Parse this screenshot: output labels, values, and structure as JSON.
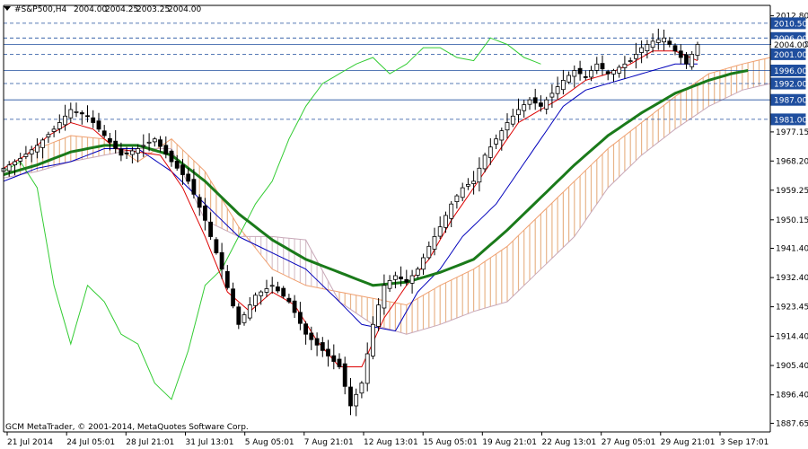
{
  "chart_data": {
    "type": "candlestick",
    "title": "#S&P500,H4",
    "ohlc_header": [
      "2004.00",
      "2004.25",
      "2003.25",
      "2004.00"
    ],
    "copyright": "GCM MetaTrader, © 2001-2014, MetaQuotes Software Corp.",
    "ylim": [
      1885.0,
      2016.0
    ],
    "y_ticks": [
      "2012.80",
      "2004.00",
      "1977.15",
      "1968.20",
      "1959.25",
      "1950.15",
      "1941.40",
      "1932.40",
      "1923.45",
      "1914.40",
      "1905.40",
      "1896.40",
      "1887.65"
    ],
    "x_ticks": [
      "21 Jul 2014",
      "24 Jul 05:01",
      "28 Jul 21:01",
      "31 Jul 13:01",
      "5 Aug 05:01",
      "7 Aug 21:01",
      "12 Aug 13:01",
      "15 Aug 05:01",
      "19 Aug 21:01",
      "22 Aug 13:01",
      "27 Aug 05:01",
      "29 Aug 21:01",
      "3 Sep 17:01"
    ],
    "level_lines": [
      {
        "label": "2010.50",
        "value": 2010.5,
        "style": "dashed",
        "highlight": true
      },
      {
        "label": "2006.00",
        "value": 2006.0,
        "style": "dashed",
        "highlight": false
      },
      {
        "label": "2004.00",
        "value": 2004.0,
        "style": "solid",
        "highlight": false,
        "current": true
      },
      {
        "label": "2001.00",
        "value": 2001.0,
        "style": "dashed",
        "highlight": false
      },
      {
        "label": "1996.00",
        "value": 1996.0,
        "style": "solid",
        "highlight": false
      },
      {
        "label": "1992.00",
        "value": 1992.0,
        "style": "dashed",
        "highlight": false
      },
      {
        "label": "1987.00",
        "value": 1987.0,
        "style": "solid",
        "highlight": false
      },
      {
        "label": "1981.00",
        "value": 1981.0,
        "style": "dashed",
        "highlight": false
      }
    ],
    "series": {
      "close_anchors": [
        [
          0,
          1966
        ],
        [
          3,
          1969
        ],
        [
          6,
          1973
        ],
        [
          9,
          1978
        ],
        [
          12,
          1984
        ],
        [
          15,
          1982
        ],
        [
          18,
          1976
        ],
        [
          21,
          1970
        ],
        [
          24,
          1972
        ],
        [
          27,
          1975
        ],
        [
          30,
          1968
        ],
        [
          33,
          1962
        ],
        [
          36,
          1950
        ],
        [
          39,
          1935
        ],
        [
          42,
          1918
        ],
        [
          45,
          1927
        ],
        [
          48,
          1930
        ],
        [
          51,
          1925
        ],
        [
          54,
          1915
        ],
        [
          57,
          1910
        ],
        [
          60,
          1905
        ],
        [
          62,
          1893
        ],
        [
          64,
          1900
        ],
        [
          66,
          1918
        ],
        [
          68,
          1930
        ],
        [
          70,
          1933
        ],
        [
          72,
          1931
        ],
        [
          74,
          1935
        ],
        [
          76,
          1942
        ],
        [
          78,
          1948
        ],
        [
          80,
          1955
        ],
        [
          82,
          1960
        ],
        [
          84,
          1962
        ],
        [
          86,
          1970
        ],
        [
          88,
          1975
        ],
        [
          90,
          1980
        ],
        [
          92,
          1984
        ],
        [
          94,
          1987
        ],
        [
          96,
          1985
        ],
        [
          98,
          1989
        ],
        [
          100,
          1993
        ],
        [
          102,
          1996
        ],
        [
          104,
          1994
        ],
        [
          106,
          1998
        ],
        [
          108,
          1995
        ],
        [
          110,
          1997
        ],
        [
          112,
          1999
        ],
        [
          114,
          2003
        ],
        [
          116,
          2005
        ],
        [
          118,
          2006
        ],
        [
          120,
          2002
        ],
        [
          122,
          1998
        ],
        [
          124,
          2004
        ]
      ],
      "ma_green_anchors": [
        [
          0,
          1964
        ],
        [
          6,
          1967
        ],
        [
          12,
          1971
        ],
        [
          18,
          1973
        ],
        [
          24,
          1973
        ],
        [
          30,
          1970
        ],
        [
          36,
          1962
        ],
        [
          42,
          1952
        ],
        [
          48,
          1944
        ],
        [
          54,
          1938
        ],
        [
          60,
          1934
        ],
        [
          66,
          1930
        ],
        [
          72,
          1931
        ],
        [
          78,
          1934
        ],
        [
          84,
          1938
        ],
        [
          90,
          1947
        ],
        [
          96,
          1957
        ],
        [
          102,
          1967
        ],
        [
          108,
          1976
        ],
        [
          114,
          1983
        ],
        [
          120,
          1989
        ],
        [
          126,
          1993
        ],
        [
          130,
          1995
        ],
        [
          133,
          1996
        ]
      ],
      "tenkan_red_anchors": [
        [
          0,
          1966
        ],
        [
          4,
          1970
        ],
        [
          8,
          1976
        ],
        [
          12,
          1980
        ],
        [
          16,
          1978
        ],
        [
          20,
          1972
        ],
        [
          24,
          1971
        ],
        [
          28,
          1970
        ],
        [
          32,
          1960
        ],
        [
          36,
          1945
        ],
        [
          40,
          1928
        ],
        [
          44,
          1922
        ],
        [
          48,
          1928
        ],
        [
          52,
          1924
        ],
        [
          56,
          1913
        ],
        [
          60,
          1905
        ],
        [
          64,
          1905
        ],
        [
          68,
          1920
        ],
        [
          72,
          1930
        ],
        [
          76,
          1938
        ],
        [
          80,
          1950
        ],
        [
          84,
          1960
        ],
        [
          88,
          1970
        ],
        [
          92,
          1980
        ],
        [
          96,
          1984
        ],
        [
          100,
          1988
        ],
        [
          104,
          1993
        ],
        [
          108,
          1995
        ],
        [
          112,
          1998
        ],
        [
          116,
          2002
        ],
        [
          120,
          2002
        ],
        [
          124,
          1999
        ]
      ],
      "kijun_blue_anchors": [
        [
          0,
          1962
        ],
        [
          6,
          1966
        ],
        [
          12,
          1968
        ],
        [
          18,
          1972
        ],
        [
          24,
          1972
        ],
        [
          30,
          1965
        ],
        [
          36,
          1955
        ],
        [
          42,
          1945
        ],
        [
          48,
          1940
        ],
        [
          54,
          1935
        ],
        [
          60,
          1925
        ],
        [
          64,
          1918
        ],
        [
          70,
          1916
        ],
        [
          74,
          1928
        ],
        [
          78,
          1935
        ],
        [
          82,
          1945
        ],
        [
          88,
          1955
        ],
        [
          92,
          1965
        ],
        [
          96,
          1975
        ],
        [
          100,
          1985
        ],
        [
          104,
          1990
        ],
        [
          108,
          1992
        ],
        [
          112,
          1994
        ],
        [
          116,
          1996
        ],
        [
          120,
          1998
        ],
        [
          124,
          1998
        ]
      ],
      "chikou_green_anchors": [
        [
          0,
          1965
        ],
        [
          3,
          1968
        ],
        [
          6,
          1960
        ],
        [
          9,
          1930
        ],
        [
          12,
          1912
        ],
        [
          15,
          1930
        ],
        [
          18,
          1925
        ],
        [
          21,
          1915
        ],
        [
          24,
          1912
        ],
        [
          27,
          1900
        ],
        [
          30,
          1895
        ],
        [
          33,
          1910
        ],
        [
          36,
          1930
        ],
        [
          39,
          1935
        ],
        [
          42,
          1945
        ],
        [
          45,
          1955
        ],
        [
          48,
          1962
        ],
        [
          51,
          1975
        ],
        [
          54,
          1985
        ],
        [
          57,
          1992
        ],
        [
          60,
          1995
        ],
        [
          63,
          1998
        ],
        [
          66,
          2000
        ],
        [
          69,
          1995
        ],
        [
          72,
          1998
        ],
        [
          75,
          2003
        ],
        [
          78,
          2003
        ],
        [
          81,
          2000
        ],
        [
          84,
          1999
        ],
        [
          87,
          2006
        ],
        [
          90,
          2004
        ],
        [
          93,
          2000
        ],
        [
          96,
          1998
        ]
      ],
      "senkou_a_anchors": [
        [
          0,
          1966
        ],
        [
          6,
          1972
        ],
        [
          12,
          1976
        ],
        [
          18,
          1975
        ],
        [
          24,
          1968
        ],
        [
          30,
          1975
        ],
        [
          36,
          1965
        ],
        [
          42,
          1948
        ],
        [
          48,
          1935
        ],
        [
          54,
          1930
        ],
        [
          60,
          1928
        ],
        [
          66,
          1926
        ],
        [
          72,
          1924
        ],
        [
          78,
          1930
        ],
        [
          84,
          1935
        ],
        [
          90,
          1942
        ],
        [
          96,
          1952
        ],
        [
          102,
          1962
        ],
        [
          108,
          1972
        ],
        [
          114,
          1980
        ],
        [
          120,
          1988
        ],
        [
          126,
          1995
        ],
        [
          132,
          1998
        ],
        [
          137,
          2000
        ]
      ],
      "senkou_b_anchors": [
        [
          0,
          1963
        ],
        [
          6,
          1965
        ],
        [
          12,
          1968
        ],
        [
          18,
          1970
        ],
        [
          24,
          1972
        ],
        [
          30,
          1972
        ],
        [
          36,
          1950
        ],
        [
          42,
          1945
        ],
        [
          48,
          1945
        ],
        [
          54,
          1944
        ],
        [
          60,
          1925
        ],
        [
          66,
          1918
        ],
        [
          72,
          1915
        ],
        [
          78,
          1918
        ],
        [
          84,
          1922
        ],
        [
          90,
          1925
        ],
        [
          96,
          1935
        ],
        [
          102,
          1945
        ],
        [
          108,
          1960
        ],
        [
          114,
          1970
        ],
        [
          120,
          1978
        ],
        [
          126,
          1985
        ],
        [
          132,
          1990
        ],
        [
          137,
          1992
        ]
      ]
    }
  }
}
